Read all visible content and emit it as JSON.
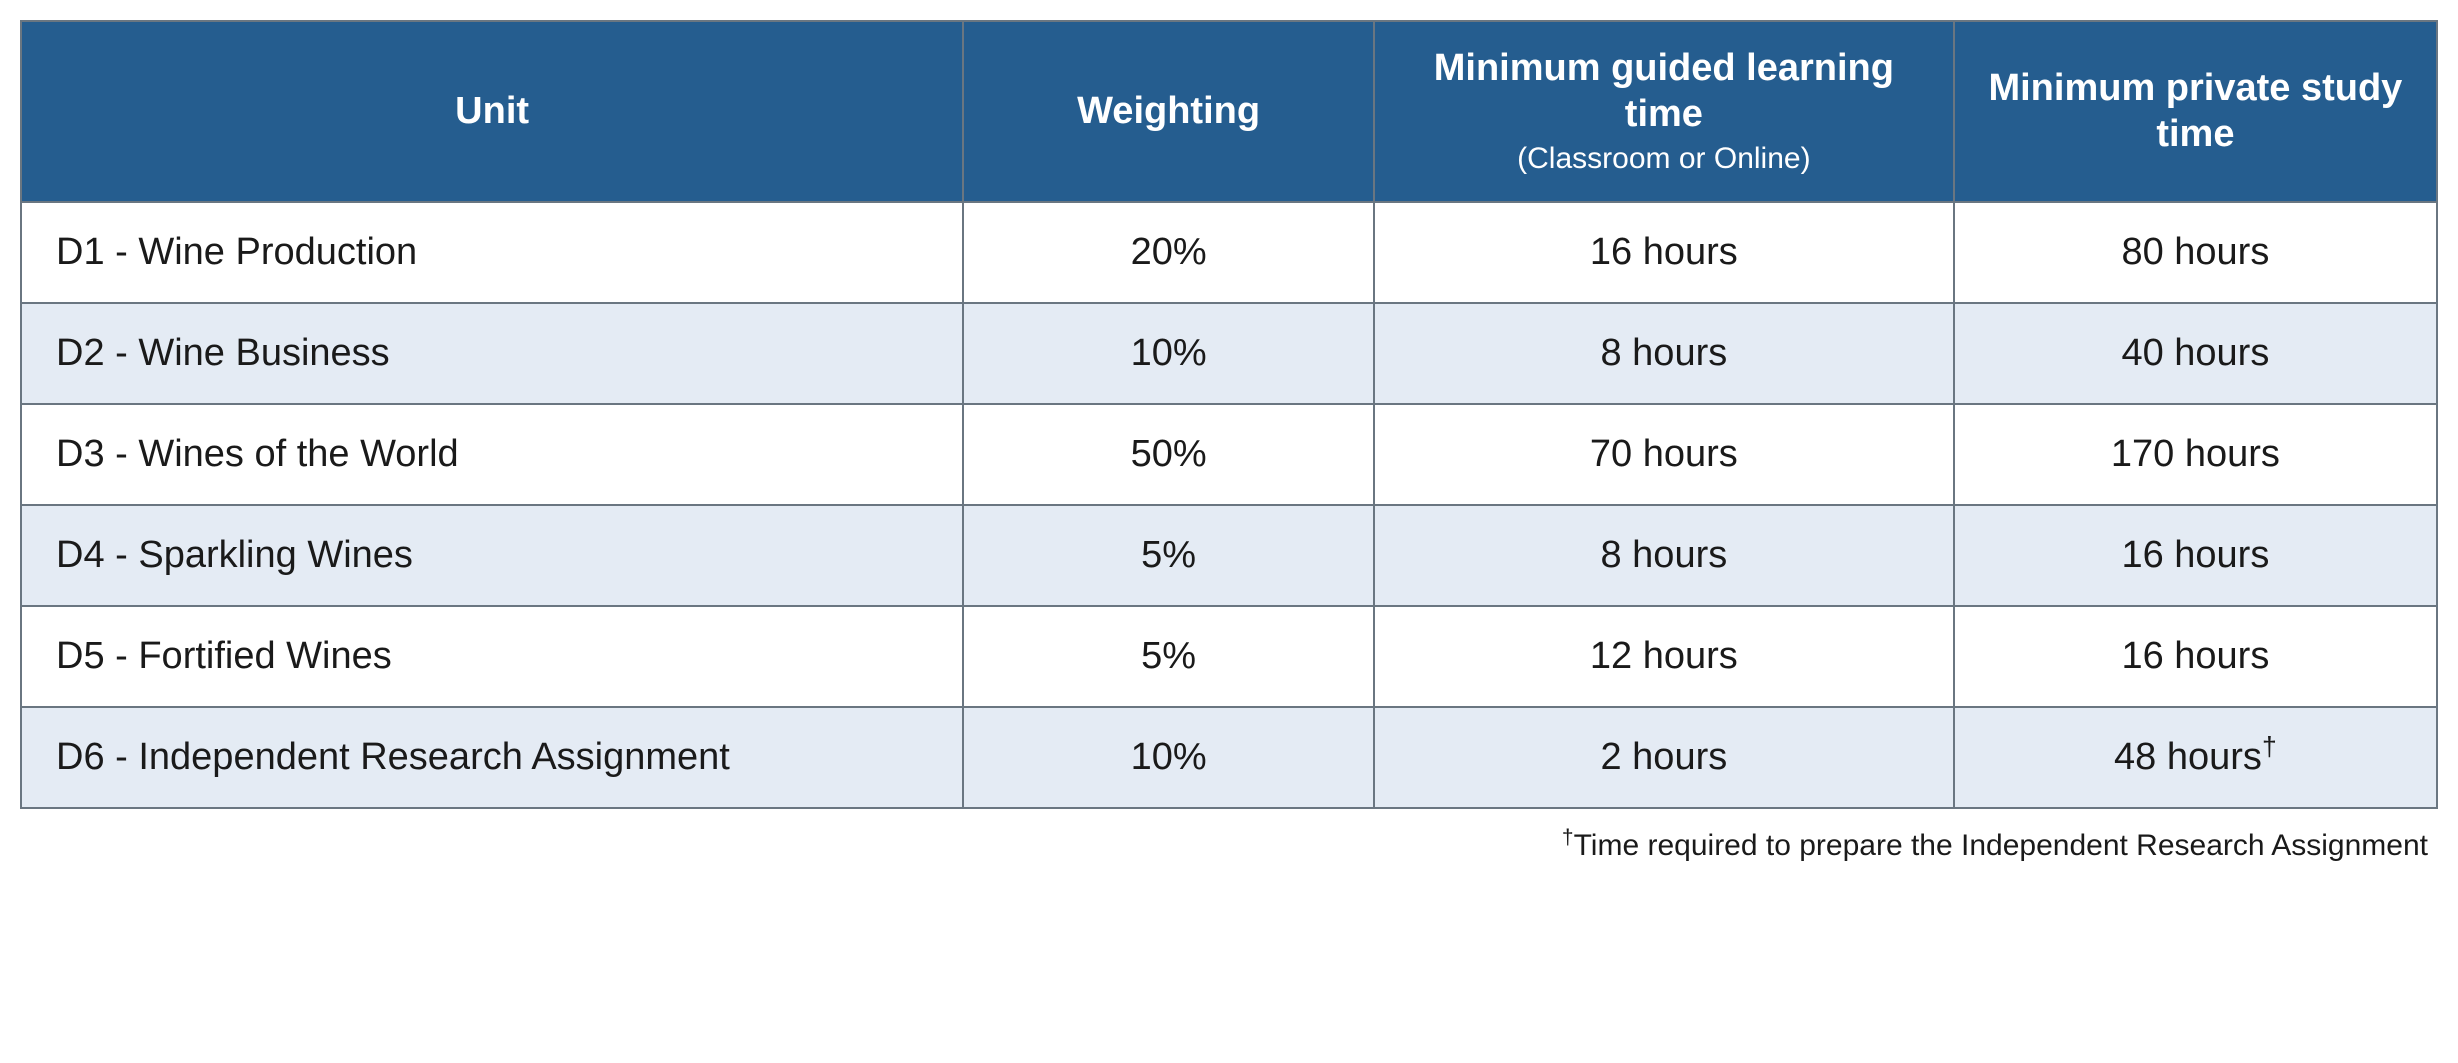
{
  "table": {
    "header_bg": "#255d8f",
    "header_fg": "#ffffff",
    "border_color": "#6a7681",
    "row_bg": "#ffffff",
    "alt_row_bg": "#e4ebf4",
    "text_color": "#1a1a1a",
    "header_fontsize_pt": 28,
    "header_sub_fontsize_pt": 22,
    "cell_fontsize_pt": 28,
    "columns": [
      {
        "key": "unit",
        "label": "Unit",
        "sub": null,
        "width_pct": 39,
        "align": "left"
      },
      {
        "key": "weighting",
        "label": "Weighting",
        "sub": null,
        "width_pct": 17,
        "align": "center"
      },
      {
        "key": "guided",
        "label": "Minimum guided learning time",
        "sub": "(Classroom or Online)",
        "width_pct": 24,
        "align": "center"
      },
      {
        "key": "private",
        "label": "Minimum private study time",
        "sub": null,
        "width_pct": 20,
        "align": "center"
      }
    ],
    "rows": [
      {
        "unit": "D1 - Wine Production",
        "weighting": "20%",
        "guided": "16 hours",
        "private": "80 hours",
        "private_dagger": false
      },
      {
        "unit": "D2 - Wine Business",
        "weighting": "10%",
        "guided": "8 hours",
        "private": "40 hours",
        "private_dagger": false
      },
      {
        "unit": "D3 - Wines of the World",
        "weighting": "50%",
        "guided": "70 hours",
        "private": "170 hours",
        "private_dagger": false
      },
      {
        "unit": "D4 - Sparkling Wines",
        "weighting": "5%",
        "guided": "8 hours",
        "private": "16 hours",
        "private_dagger": false
      },
      {
        "unit": "D5 - Fortified Wines",
        "weighting": "5%",
        "guided": "12 hours",
        "private": "16 hours",
        "private_dagger": false
      },
      {
        "unit": "D6 - Independent Research Assignment",
        "weighting": "10%",
        "guided": "2 hours",
        "private": "48 hours",
        "private_dagger": true
      }
    ]
  },
  "footnote": {
    "dagger": "†",
    "text": "Time required to prepare the Independent Research Assignment"
  }
}
